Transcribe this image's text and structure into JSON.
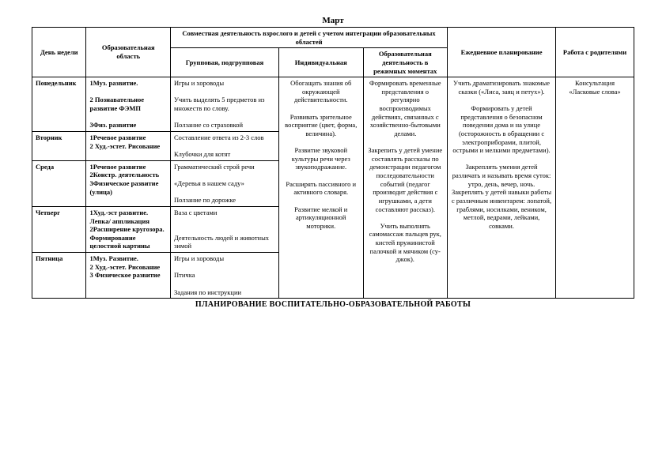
{
  "month": "Март",
  "header": {
    "day": "День недели",
    "area": "Образовательная область",
    "joint": "Совместная деятельность взрослого и детей с учетом интеграции образовательных областей",
    "group": "Групповая, подгрупповая",
    "individual": "Индивидуальная",
    "regime": "Образовательная деятельность в режимных моментах",
    "daily": "Ежедневное планирование",
    "parents": "Работа с родителями"
  },
  "rows": {
    "mon": {
      "day": "Понедельник",
      "area": "1Муз. развитие.\n\n2 Познавательное развитие ФЭМП\n\n3Физ. развитие",
      "group": "Игры и хороводы\n\nУчить выделять 5 предметов из множеств по слову.\n\nПолзание со страховкой"
    },
    "tue": {
      "day": "Вторник",
      "area": "1Речевое развитие\n2 Худ.-эстет. Рисование",
      "group": "Составление ответа из 2-3 слов\n\nКлубочки для котят"
    },
    "wed": {
      "day": "Среда",
      "area": "1Речевое развитие\n2Констр. деятельность\n3Физическое развитие (улица)",
      "group": "Грамматический строй речи\n\n«Деревья в нашем саду»\n\nПолзание по дорожке"
    },
    "thu": {
      "day": "Четверг",
      "area": "1Худ.-эст развитие. Лепка/ аппликация\n2Расширение кругозора. Формирование целостной картины",
      "group": "Ваза с цветами\n\n\nДеятельность людей и животных зимой"
    },
    "fri": {
      "day": "Пятница",
      "area": "1Муз. Развитие.\n2 Худ.-эстет. Рисование\n3 Физическое развитие",
      "group": "Игры и хороводы\n\nПтичка\n\nЗадания по инструкции"
    }
  },
  "individual": "Обогащать знания об окружающей действительности.\n\nРазвивать зрительное восприятие (цвет, форма, величина).\n\nРазвитие звуковой культуры речи через звукоподражание.\n\nРасширять пассивного и активного словаря.\n\nРазвитие мелкой и артикуляционной моторики.",
  "regime": "Формировать временные представления о регулярно воспроизводимых действиях, связанных с хозяйственно-бытовыми делами.\n\nЗакрепить у детей умение составлять рассказы по демонстрации педагогом последовательности событий (педагог производит действия с игрушками, а дети составляют рассказ).\n\nУчить выполнять самомассаж пальцев рук, кистей пружинистой палочкой и мячиком (су-джок).",
  "daily": "Учить драматизировать знакомые сказки («Лиса, заяц и петух»).\n\nФормировать у детей представления о безопасном поведении дома и на улице (осторожность в обращении с электроприборами, плитой, острыми и мелкими предметами).\n\nЗакреплять умения детей различать и называть время суток: утро, день, вечер, ночь.\nЗакреплять у детей навыки работы с различным инвентарем: лопатой, граблями, носилками, веником, метлой, ведрами, лейками, совками.",
  "parents": "Консультация «Ласковые слова»",
  "footer": "ПЛАНИРОВАНИЕ ВОСПИТАТЕЛЬНО-ОБРАЗОВАТЕЛЬНОЙ РАБОТЫ"
}
